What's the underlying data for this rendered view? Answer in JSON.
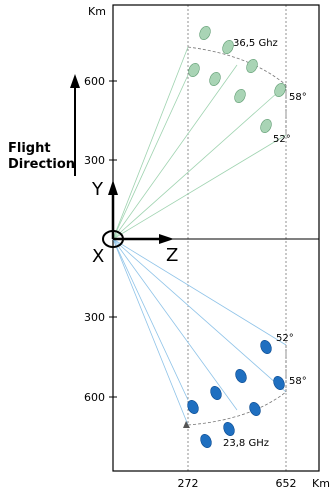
{
  "units": {
    "left_axis": "Km",
    "bottom_axis": "Km"
  },
  "y_axis_ticks_upper": [
    "600",
    "300"
  ],
  "y_axis_ticks_lower": [
    "300",
    "600"
  ],
  "x_axis_ticks": [
    "272",
    "652"
  ],
  "flight_direction": {
    "line1": "Flight",
    "line2": "Direction"
  },
  "axes": {
    "x": "X",
    "y": "Y",
    "z": "Z"
  },
  "upper_band": {
    "frequency": "36,5 Ghz",
    "angle_outer": "58°",
    "angle_inner": "52°",
    "color": "#a9d4b5",
    "stroke": "#5f9c72",
    "ray_color": "#9fd3b0"
  },
  "lower_band": {
    "frequency": "23,8 GHz",
    "angle_outer": "58°",
    "angle_inner": "52°",
    "color": "#1f6fc0",
    "stroke": "#0b4a8f",
    "ray_color": "#8fc3e8"
  }
}
